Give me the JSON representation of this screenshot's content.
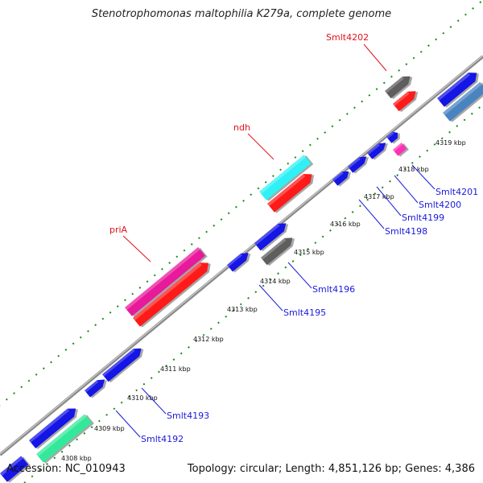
{
  "title": "Stenotrophomonas maltophilia K279a, complete genome",
  "footer": {
    "accession": "Accession: NC_010943",
    "summary": "Topology: circular; Length: 4,851,126 bp; Genes: 4,386"
  },
  "ticks": [
    "4308 kbp",
    "4309 kbp",
    "4310 kbp",
    "4311 kbp",
    "4312 kbp",
    "4313 kbp",
    "4314 kbp",
    "4315 kbp",
    "4316 kbp",
    "4317 kbp",
    "4318 kbp",
    "4319 kbp"
  ],
  "labels": {
    "smlt4202": "Smlt4202",
    "ndh": "ndh",
    "pria": "priA",
    "smlt4201": "Smlt4201",
    "smlt4200": "Smlt4200",
    "smlt4199": "Smlt4199",
    "smlt4198": "Smlt4198",
    "smlt4196": "Smlt4196",
    "smlt4195": "Smlt4195",
    "smlt4193": "Smlt4193",
    "smlt4192": "Smlt4192"
  },
  "colors": {
    "cds": "#1515e6",
    "named_cds": "#ff1a1a",
    "cyan": "#2ef0f5",
    "magenta": "#e8199a",
    "gray": "#5e5e5e",
    "steel": "#4a84c0",
    "mint": "#34e89a",
    "pink_small": "#ff2fb6",
    "ruler": "#1a8a1a",
    "backbone": "#8a8a8a",
    "label_blue": "#1a1adb",
    "label_red": "#e0141c"
  }
}
